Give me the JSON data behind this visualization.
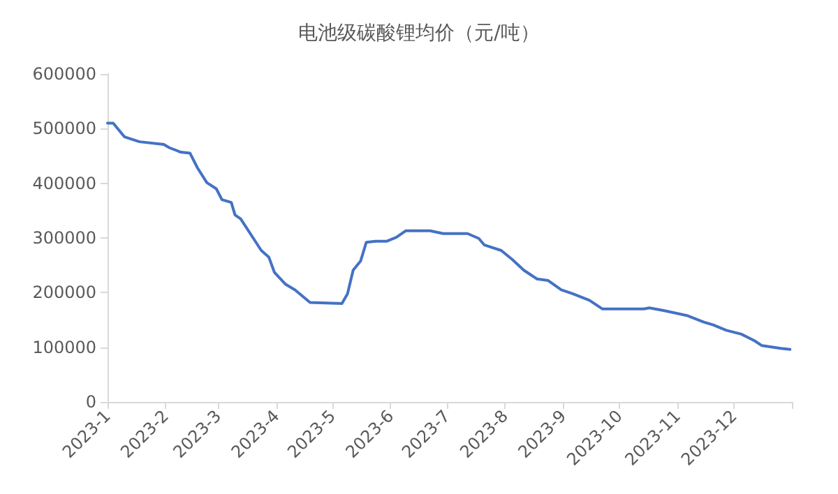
{
  "chart_data": {
    "type": "line",
    "title": "电池级碳酸锂均价（元/吨）",
    "x": [
      "2023-01-01",
      "2023-01-04",
      "2023-01-10",
      "2023-01-18",
      "2023-01-31",
      "2023-02-03",
      "2023-02-09",
      "2023-02-14",
      "2023-02-18",
      "2023-02-23",
      "2023-02-28",
      "2023-03-03",
      "2023-03-08",
      "2023-03-10",
      "2023-03-13",
      "2023-03-24",
      "2023-03-28",
      "2023-03-31",
      "2023-04-06",
      "2023-04-11",
      "2023-04-19",
      "2023-05-06",
      "2023-05-09",
      "2023-05-12",
      "2023-05-16",
      "2023-05-19",
      "2023-05-24",
      "2023-05-30",
      "2023-06-04",
      "2023-06-09",
      "2023-06-22",
      "2023-06-29",
      "2023-07-12",
      "2023-07-18",
      "2023-07-21",
      "2023-07-30",
      "2023-08-05",
      "2023-08-11",
      "2023-08-18",
      "2023-08-24",
      "2023-08-31",
      "2023-09-06",
      "2023-09-15",
      "2023-09-22",
      "2023-10-14",
      "2023-10-17",
      "2023-10-25",
      "2023-11-06",
      "2023-11-15",
      "2023-11-20",
      "2023-11-27",
      "2023-12-05",
      "2023-12-12",
      "2023-12-16",
      "2023-12-26",
      "2023-12-31"
    ],
    "series": [
      {
        "color": "#4472c4",
        "values": [
          510000,
          510000,
          485000,
          476000,
          471000,
          465000,
          457000,
          455000,
          428000,
          401000,
          390000,
          370000,
          365000,
          342000,
          335000,
          277000,
          265000,
          237000,
          215000,
          205000,
          182000,
          180000,
          198000,
          241000,
          258000,
          292000,
          294000,
          294000,
          301000,
          313000,
          313000,
          308000,
          308000,
          299000,
          287000,
          277000,
          260000,
          241000,
          225000,
          222000,
          205000,
          198000,
          186000,
          170000,
          170000,
          172000,
          167000,
          158000,
          146000,
          141000,
          131000,
          124000,
          112000,
          103000,
          98000,
          96000
        ]
      }
    ],
    "xlim": [
      "2023-01-01",
      "2024-01-01"
    ],
    "xticks": [
      {
        "value": "2023-01-01",
        "label": "2023-1"
      },
      {
        "value": "2023-02-01",
        "label": "2023-2"
      },
      {
        "value": "2023-03-01",
        "label": "2023-3"
      },
      {
        "value": "2023-04-01",
        "label": "2023-4"
      },
      {
        "value": "2023-05-01",
        "label": "2023-5"
      },
      {
        "value": "2023-06-01",
        "label": "2023-6"
      },
      {
        "value": "2023-07-01",
        "label": "2023-7"
      },
      {
        "value": "2023-08-01",
        "label": "2023-8"
      },
      {
        "value": "2023-09-01",
        "label": "2023-9"
      },
      {
        "value": "2023-10-01",
        "label": "2023-10"
      },
      {
        "value": "2023-11-01",
        "label": "2023-11"
      },
      {
        "value": "2023-12-01",
        "label": "2023-12"
      },
      {
        "value": "2024-01-01",
        "label": null
      }
    ],
    "ylim": [
      0,
      600000
    ],
    "yticks": [
      0,
      100000,
      200000,
      300000,
      400000,
      500000,
      600000
    ],
    "grid": false,
    "marker": "none",
    "line_style": "solid"
  }
}
